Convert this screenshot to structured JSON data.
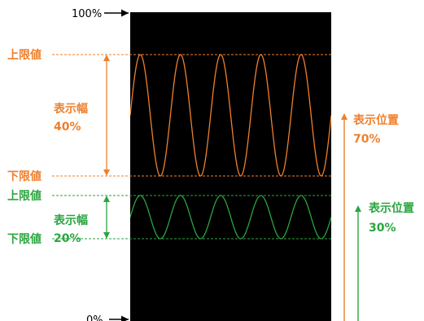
{
  "ref_labels": {
    "top": "100%",
    "bottom": "0%"
  },
  "colors": {
    "orange": "#ee7f2d",
    "green": "#2aa540",
    "screen": "#000000",
    "arrow": "#000000"
  },
  "orange": {
    "upper_label": "上限値",
    "lower_label": "下限値",
    "width_title": "表示幅",
    "width_value": "40%",
    "position_title": "表示位置",
    "position_value": "70%",
    "cycles": 5
  },
  "green": {
    "upper_label": "上限値",
    "lower_label": "下限値",
    "width_title": "表示幅",
    "width_value": "20%",
    "position_title": "表示位置",
    "position_value": "30%",
    "cycles": 5
  }
}
